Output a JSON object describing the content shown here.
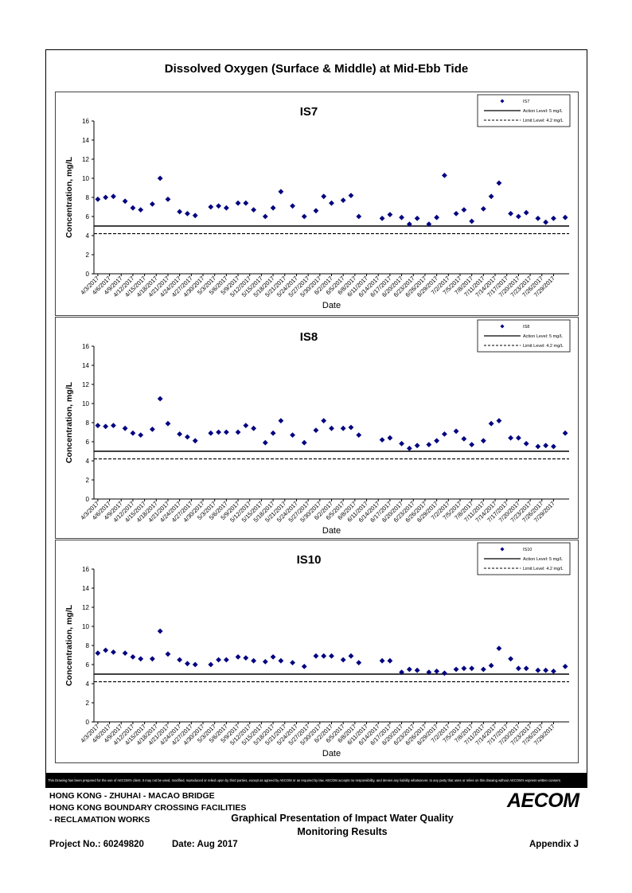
{
  "title": "Dissolved Oxygen (Surface & Middle) at Mid-Ebb Tide",
  "shared_axes": {
    "xlabel": "Date",
    "ylabel": "Concentration, mg/L",
    "ylim": [
      0,
      16
    ],
    "yticks": [
      "0",
      "2",
      "4",
      "6",
      "8",
      "10",
      "12",
      "14",
      "16"
    ],
    "xticks": [
      "4/3/2017",
      "4/6/2017",
      "4/9/2017",
      "4/12/2017",
      "4/15/2017",
      "4/18/2017",
      "4/21/2017",
      "4/24/2017",
      "4/27/2017",
      "4/30/2017",
      "5/3/2017",
      "5/6/2017",
      "5/9/2017",
      "5/12/2017",
      "5/15/2017",
      "5/18/2017",
      "5/21/2017",
      "5/24/2017",
      "5/27/2017",
      "5/30/2017",
      "6/2/2017",
      "6/5/2017",
      "6/8/2017",
      "6/11/2017",
      "6/14/2017",
      "6/17/2017",
      "6/20/2017",
      "6/23/2017",
      "6/26/2017",
      "6/29/2017",
      "7/2/2017",
      "7/5/2017",
      "7/8/2017",
      "7/11/2017",
      "7/14/2017",
      "7/17/2017",
      "7/20/2017",
      "7/23/2017",
      "7/26/2017",
      "7/29/2017"
    ]
  },
  "colors": {
    "marker": "#000080",
    "line": "#000000"
  },
  "chart_data": [
    {
      "type": "scatter",
      "title": "IS7",
      "xlabel": "Date",
      "ylabel": "Concentration, mg/L",
      "ylim": [
        0,
        16
      ],
      "legend_position": "top-right",
      "legend": {
        "series": "IS7",
        "action": "Action Level: 5 mg/L",
        "limit": "Limit Level: 4.2 mg/L"
      },
      "action_level": 5,
      "limit_level": 4.2,
      "x": [
        "4/3/2017",
        "4/5/2017",
        "4/7/2017",
        "4/10/2017",
        "4/12/2017",
        "4/14/2017",
        "4/17/2017",
        "4/19/2017",
        "4/21/2017",
        "4/24/2017",
        "4/26/2017",
        "4/28/2017",
        "5/2/2017",
        "5/4/2017",
        "5/6/2017",
        "5/9/2017",
        "5/11/2017",
        "5/13/2017",
        "5/16/2017",
        "5/18/2017",
        "5/20/2017",
        "5/23/2017",
        "5/26/2017",
        "5/29/2017",
        "5/31/2017",
        "6/2/2017",
        "6/5/2017",
        "6/7/2017",
        "6/9/2017",
        "6/15/2017",
        "6/17/2017",
        "6/20/2017",
        "6/22/2017",
        "6/24/2017",
        "6/27/2017",
        "6/29/2017",
        "7/1/2017",
        "7/4/2017",
        "7/6/2017",
        "7/8/2017",
        "7/11/2017",
        "7/13/2017",
        "7/15/2017",
        "7/18/2017",
        "7/20/2017",
        "7/22/2017",
        "7/25/2017",
        "7/27/2017",
        "7/29/2017",
        "8/1/2017"
      ],
      "y": [
        7.8,
        8.0,
        8.1,
        7.6,
        6.9,
        6.7,
        7.3,
        10.0,
        7.8,
        6.5,
        6.3,
        6.1,
        7.0,
        7.1,
        6.9,
        7.4,
        7.4,
        6.7,
        6.0,
        6.9,
        8.6,
        7.1,
        6.0,
        6.6,
        8.1,
        7.4,
        7.7,
        8.2,
        6.0,
        5.8,
        6.2,
        5.9,
        5.2,
        5.8,
        5.2,
        5.9,
        10.3,
        6.3,
        6.7,
        5.5,
        6.8,
        8.1,
        9.5,
        6.3,
        6.0,
        6.4,
        5.8,
        5.4,
        5.8,
        5.9
      ]
    },
    {
      "type": "scatter",
      "title": "IS8",
      "xlabel": "Date",
      "ylabel": "Concentration, mg/L",
      "ylim": [
        0,
        16
      ],
      "legend_position": "top-right",
      "legend": {
        "series": "IS8",
        "action": "Action Level: 5 mg/L",
        "limit": "Limit Level: 4.2 mg/L"
      },
      "action_level": 5,
      "limit_level": 4.2,
      "x": [
        "4/3/2017",
        "4/5/2017",
        "4/7/2017",
        "4/10/2017",
        "4/12/2017",
        "4/14/2017",
        "4/17/2017",
        "4/19/2017",
        "4/21/2017",
        "4/24/2017",
        "4/26/2017",
        "4/28/2017",
        "5/2/2017",
        "5/4/2017",
        "5/6/2017",
        "5/9/2017",
        "5/11/2017",
        "5/13/2017",
        "5/16/2017",
        "5/18/2017",
        "5/20/2017",
        "5/23/2017",
        "5/26/2017",
        "5/29/2017",
        "5/31/2017",
        "6/2/2017",
        "6/5/2017",
        "6/7/2017",
        "6/9/2017",
        "6/15/2017",
        "6/17/2017",
        "6/20/2017",
        "6/22/2017",
        "6/24/2017",
        "6/27/2017",
        "6/29/2017",
        "7/1/2017",
        "7/4/2017",
        "7/6/2017",
        "7/8/2017",
        "7/11/2017",
        "7/13/2017",
        "7/15/2017",
        "7/18/2017",
        "7/20/2017",
        "7/22/2017",
        "7/25/2017",
        "7/27/2017",
        "7/29/2017",
        "8/1/2017"
      ],
      "y": [
        7.7,
        7.6,
        7.7,
        7.4,
        6.9,
        6.7,
        7.3,
        10.5,
        7.9,
        6.8,
        6.5,
        6.1,
        6.9,
        7.0,
        7.0,
        7.0,
        7.7,
        7.4,
        5.9,
        6.9,
        8.2,
        6.7,
        5.9,
        7.2,
        8.2,
        7.4,
        7.4,
        7.5,
        6.7,
        6.2,
        6.4,
        5.8,
        5.3,
        5.6,
        5.7,
        6.1,
        6.8,
        7.1,
        6.3,
        5.7,
        6.1,
        7.9,
        8.2,
        6.4,
        6.4,
        5.8,
        5.5,
        5.6,
        5.5,
        6.9
      ]
    },
    {
      "type": "scatter",
      "title": "IS10",
      "xlabel": "Date",
      "ylabel": "Concentration, mg/L",
      "ylim": [
        0,
        16
      ],
      "legend_position": "top-right",
      "legend": {
        "series": "IS10",
        "action": "Action Level: 5 mg/L",
        "limit": "Limit Level: 4.2 mg/L"
      },
      "action_level": 5,
      "limit_level": 4.2,
      "x": [
        "4/3/2017",
        "4/5/2017",
        "4/7/2017",
        "4/10/2017",
        "4/12/2017",
        "4/14/2017",
        "4/17/2017",
        "4/19/2017",
        "4/21/2017",
        "4/24/2017",
        "4/26/2017",
        "4/28/2017",
        "5/2/2017",
        "5/4/2017",
        "5/6/2017",
        "5/9/2017",
        "5/11/2017",
        "5/13/2017",
        "5/16/2017",
        "5/18/2017",
        "5/20/2017",
        "5/23/2017",
        "5/26/2017",
        "5/29/2017",
        "5/31/2017",
        "6/2/2017",
        "6/5/2017",
        "6/7/2017",
        "6/9/2017",
        "6/15/2017",
        "6/17/2017",
        "6/20/2017",
        "6/22/2017",
        "6/24/2017",
        "6/27/2017",
        "6/29/2017",
        "7/1/2017",
        "7/4/2017",
        "7/6/2017",
        "7/8/2017",
        "7/11/2017",
        "7/13/2017",
        "7/15/2017",
        "7/18/2017",
        "7/20/2017",
        "7/22/2017",
        "7/25/2017",
        "7/27/2017",
        "7/29/2017",
        "8/1/2017"
      ],
      "y": [
        7.2,
        7.5,
        7.3,
        7.2,
        6.8,
        6.6,
        6.6,
        9.5,
        7.1,
        6.5,
        6.1,
        6.0,
        6.0,
        6.5,
        6.5,
        6.8,
        6.7,
        6.4,
        6.3,
        6.8,
        6.4,
        6.2,
        5.8,
        6.9,
        6.9,
        6.9,
        6.5,
        6.9,
        6.2,
        6.4,
        6.4,
        5.2,
        5.5,
        5.4,
        5.2,
        5.3,
        5.1,
        5.5,
        5.6,
        5.6,
        5.5,
        5.9,
        7.7,
        6.6,
        5.6,
        5.6,
        5.4,
        5.4,
        5.3,
        5.8
      ]
    }
  ],
  "disclaimer": "This Drawing has been prepared for the use of AECOM's client. It may not be used, modified, reproduced or relied upon by third parties, except as agreed by AECOM or as required by law. AECOM accepts no responsibility, and denies any liability whatsoever, to any party that uses or relies on this drawing without AECOM's express written consent.",
  "footer": {
    "project_line1": "HONG KONG - ZHUHAI - MACAO BRIDGE",
    "project_line2": "HONG KONG BOUNDARY CROSSING FACILITIES",
    "project_line3": "- RECLAMATION WORKS",
    "report_title_line1": "Graphical Presentation of Impact Water Quality",
    "report_title_line2": "Monitoring Results",
    "project_no": "Project No.: 60249820",
    "date": "Date: Aug 2017",
    "appendix": "Appendix J",
    "logo": "AECOM"
  }
}
